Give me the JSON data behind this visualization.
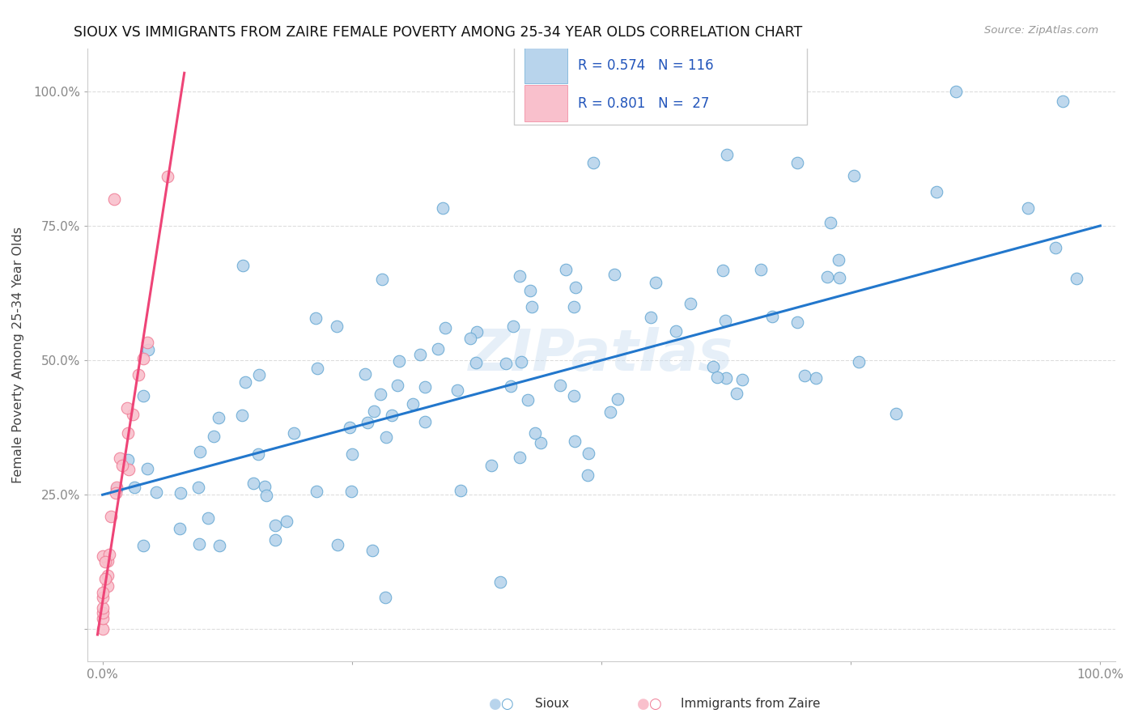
{
  "title": "SIOUX VS IMMIGRANTS FROM ZAIRE FEMALE POVERTY AMONG 25-34 YEAR OLDS CORRELATION CHART",
  "source_text": "Source: ZipAtlas.com",
  "ylabel": "Female Poverty Among 25-34 Year Olds",
  "sioux_color": "#b8d4ec",
  "sioux_edge_color": "#6aaad4",
  "zaire_color": "#f9c0cc",
  "zaire_edge_color": "#f08098",
  "sioux_line_color": "#2277cc",
  "zaire_line_color": "#ee4477",
  "watermark": "ZIPatlas",
  "background_color": "#ffffff",
  "sioux_R": 0.574,
  "sioux_N": 116,
  "zaire_R": 0.801,
  "zaire_N": 27,
  "legend_text_color": "#2255bb",
  "axis_tick_color": "#888888",
  "grid_color": "#dddddd"
}
